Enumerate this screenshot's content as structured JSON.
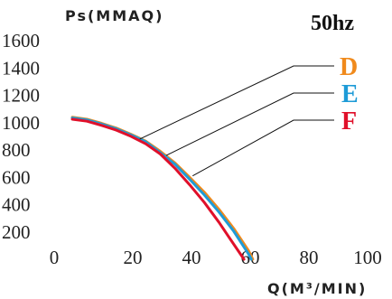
{
  "chart_data": {
    "type": "line",
    "frequency_label": "50hz",
    "ylabel": "Ps(MMAQ)",
    "xlabel": "Q(M³/MIN)",
    "xlim": [
      0,
      100
    ],
    "ylim": [
      0,
      1600
    ],
    "x_ticks": [
      "0",
      "20",
      "40",
      "60",
      "80",
      "100"
    ],
    "y_ticks": [
      "200",
      "400",
      "600",
      "800",
      "1000",
      "1200",
      "1400",
      "1600"
    ],
    "x_tick_values": [
      0,
      20,
      40,
      60,
      80,
      100
    ],
    "y_tick_values": [
      200,
      400,
      600,
      800,
      1000,
      1200,
      1400,
      1600
    ],
    "grid": false,
    "series": [
      {
        "name": "D",
        "color": "#F08A1C",
        "x": [
          0,
          5,
          10,
          15,
          20,
          25,
          30,
          35,
          40,
          45,
          50,
          55,
          60,
          61.5
        ],
        "y": [
          1040,
          1025,
          995,
          960,
          915,
          865,
          790,
          705,
          600,
          490,
          365,
          225,
          65,
          0
        ],
        "callout_anchor": [
          23,
          880
        ]
      },
      {
        "name": "E",
        "color": "#1E9BD7",
        "x": [
          0,
          5,
          10,
          15,
          20,
          25,
          30,
          35,
          40,
          45,
          50,
          55,
          60,
          61
        ],
        "y": [
          1035,
          1020,
          990,
          955,
          910,
          860,
          780,
          695,
          585,
          470,
          345,
          205,
          40,
          0
        ],
        "callout_anchor": [
          32,
          760
        ]
      },
      {
        "name": "F",
        "color": "#E0102A",
        "x": [
          0,
          5,
          10,
          15,
          20,
          25,
          30,
          35,
          40,
          45,
          50,
          55,
          58.5
        ],
        "y": [
          1025,
          1010,
          980,
          945,
          900,
          845,
          770,
          665,
          545,
          415,
          270,
          110,
          0
        ],
        "callout_anchor": [
          41,
          610
        ]
      }
    ]
  }
}
